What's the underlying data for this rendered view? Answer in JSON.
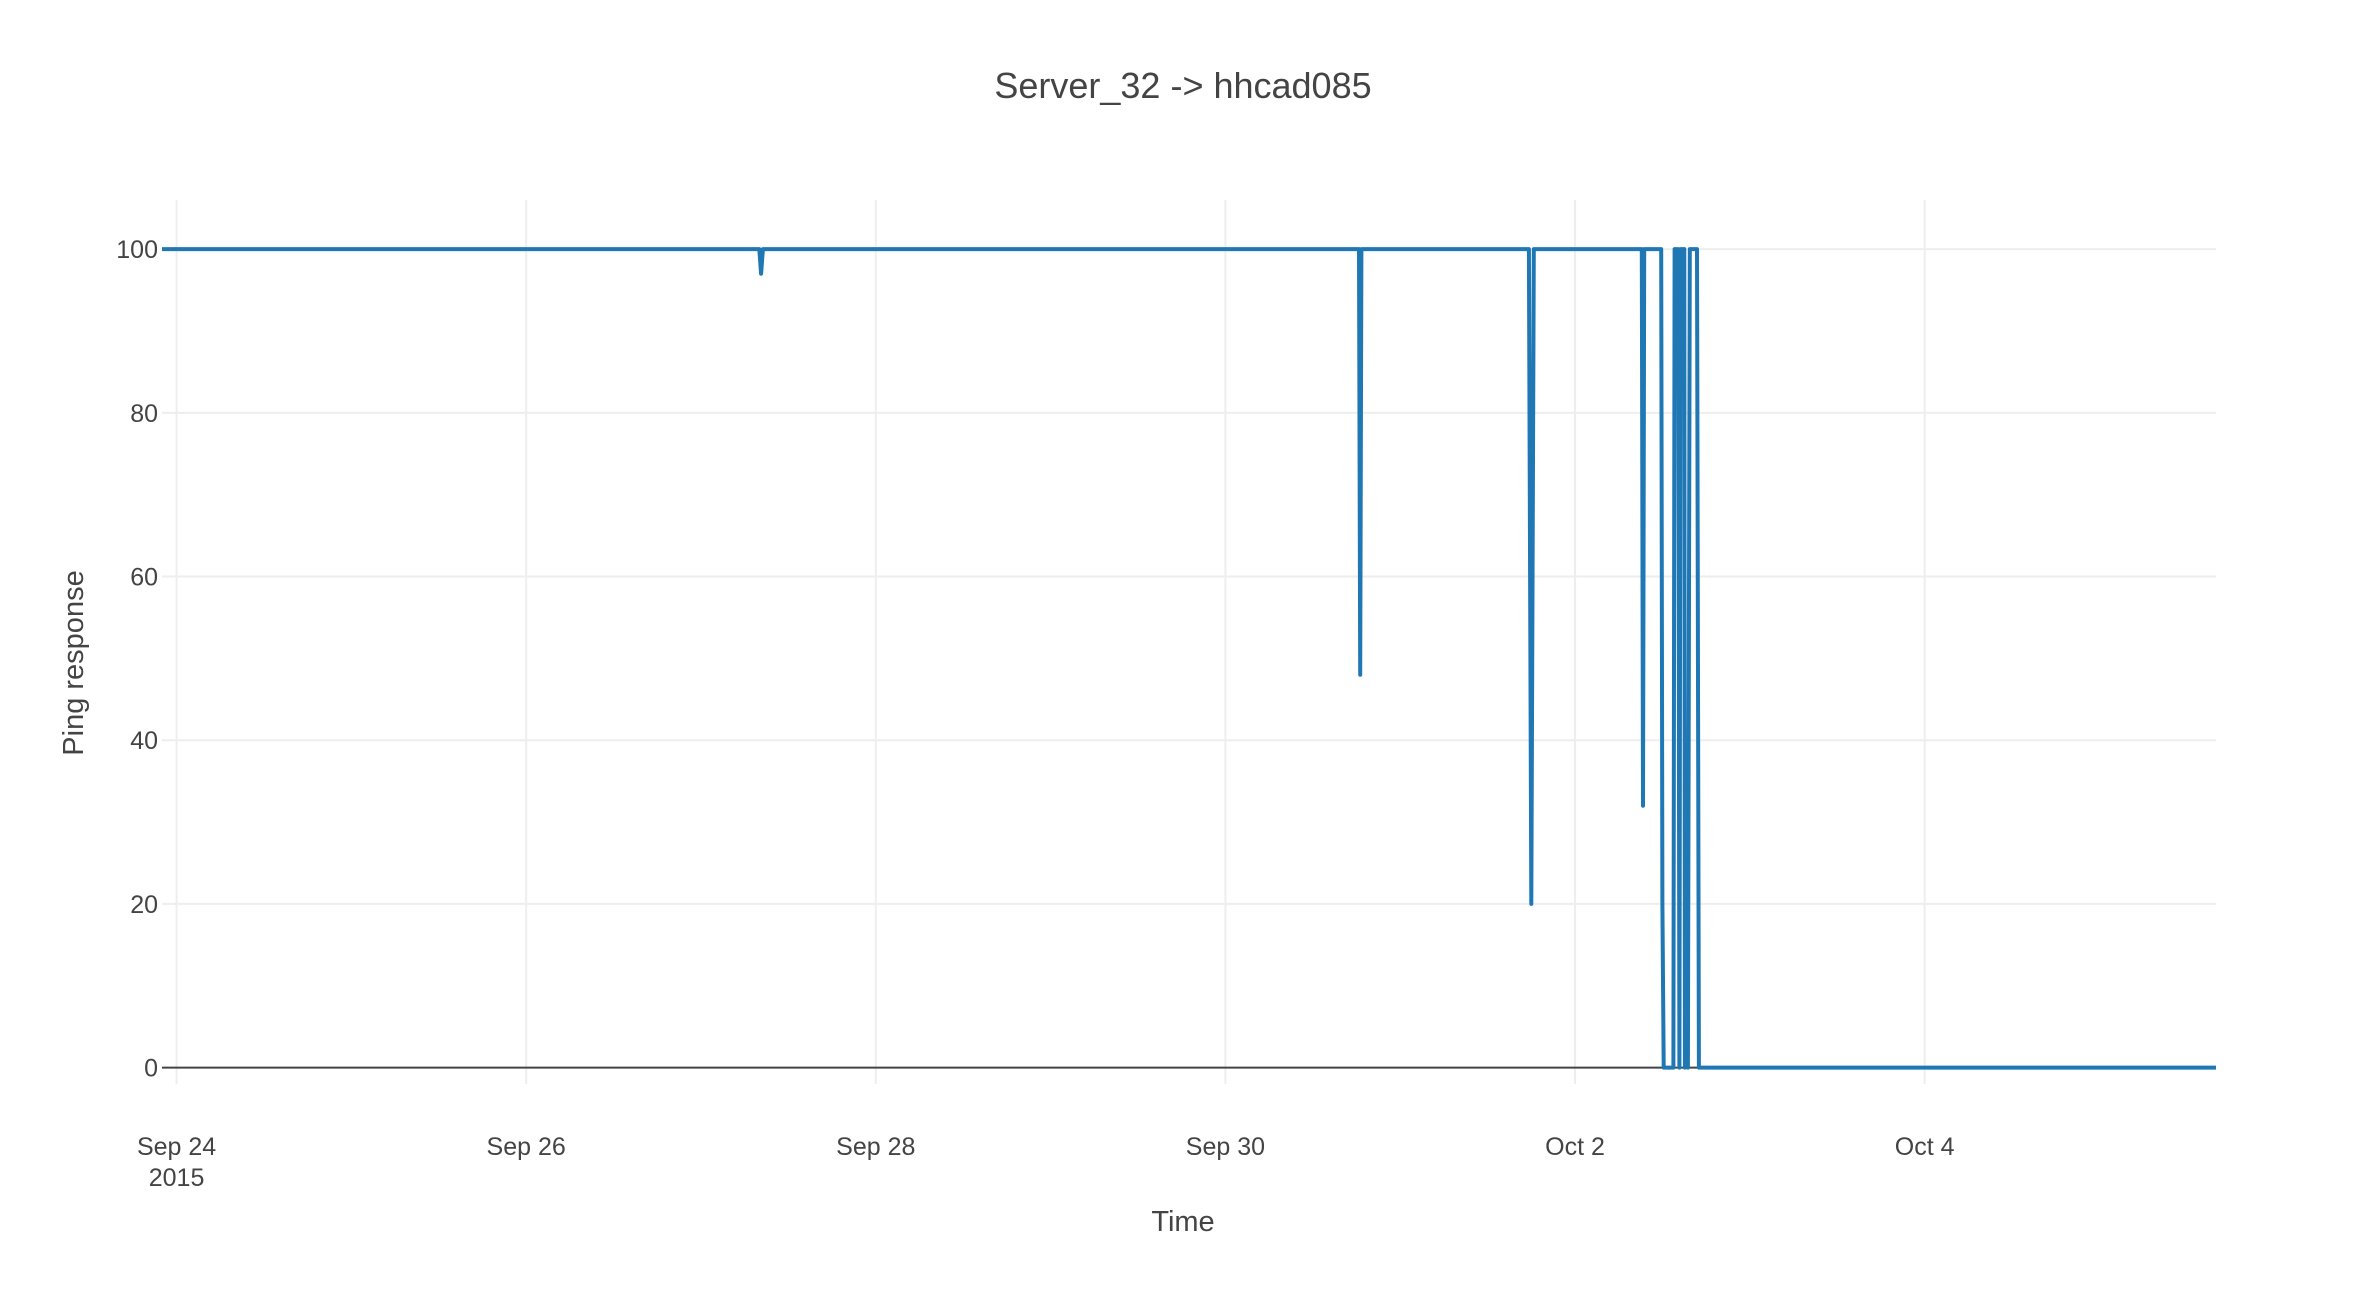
{
  "chart_data": {
    "type": "line",
    "title": "Server_32 -> hhcad085",
    "xlabel": "Time",
    "ylabel": "Ping response",
    "x_tick_labels": [
      {
        "date": "2015-09-24",
        "lines": [
          "Sep 24",
          "2015"
        ]
      },
      {
        "date": "2015-09-26",
        "lines": [
          "Sep 26"
        ]
      },
      {
        "date": "2015-09-28",
        "lines": [
          "Sep 28"
        ]
      },
      {
        "date": "2015-09-30",
        "lines": [
          "Sep 30"
        ]
      },
      {
        "date": "2015-10-02",
        "lines": [
          "Oct 2"
        ]
      },
      {
        "date": "2015-10-04",
        "lines": [
          "Oct 4"
        ]
      }
    ],
    "y_tick_labels": [
      "0",
      "20",
      "40",
      "60",
      "80",
      "100"
    ],
    "y_ticks": [
      0,
      20,
      40,
      60,
      80,
      100
    ],
    "xlim": [
      "2015-09-23 22:00",
      "2015-10-05 16:00"
    ],
    "ylim": [
      -2,
      106
    ],
    "grid": true,
    "legend": "none",
    "line_color": "#1f77b4",
    "series": [
      {
        "x": [
          "2015-09-23 22:00",
          "2015-09-27 08:00",
          "2015-09-27 08:15",
          "2015-09-27 08:30",
          "2015-09-30 18:20",
          "2015-09-30 18:30",
          "2015-09-30 18:40",
          "2015-10-01 17:40",
          "2015-10-01 18:00",
          "2015-10-01 18:20",
          "2015-10-02 09:10",
          "2015-10-02 09:20",
          "2015-10-02 09:30",
          "2015-10-02 11:50",
          "2015-10-02 12:00",
          "2015-10-02 12:10",
          "2015-10-02 13:00",
          "2015-10-02 13:30",
          "2015-10-02 13:40",
          "2015-10-02 14:10",
          "2015-10-02 14:20",
          "2015-10-02 14:30",
          "2015-10-02 15:00",
          "2015-10-02 15:05",
          "2015-10-02 15:15",
          "2015-10-02 15:30",
          "2015-10-02 15:45",
          "2015-10-02 15:55",
          "2015-10-02 16:45",
          "2015-10-02 17:00",
          "2015-10-05 16:00"
        ],
        "y": [
          100,
          100,
          97,
          100,
          100,
          48,
          100,
          100,
          20,
          100,
          100,
          32,
          100,
          100,
          20,
          0,
          0,
          0,
          100,
          100,
          0,
          100,
          100,
          0,
          32,
          0,
          100,
          100,
          100,
          0,
          0
        ]
      }
    ]
  }
}
